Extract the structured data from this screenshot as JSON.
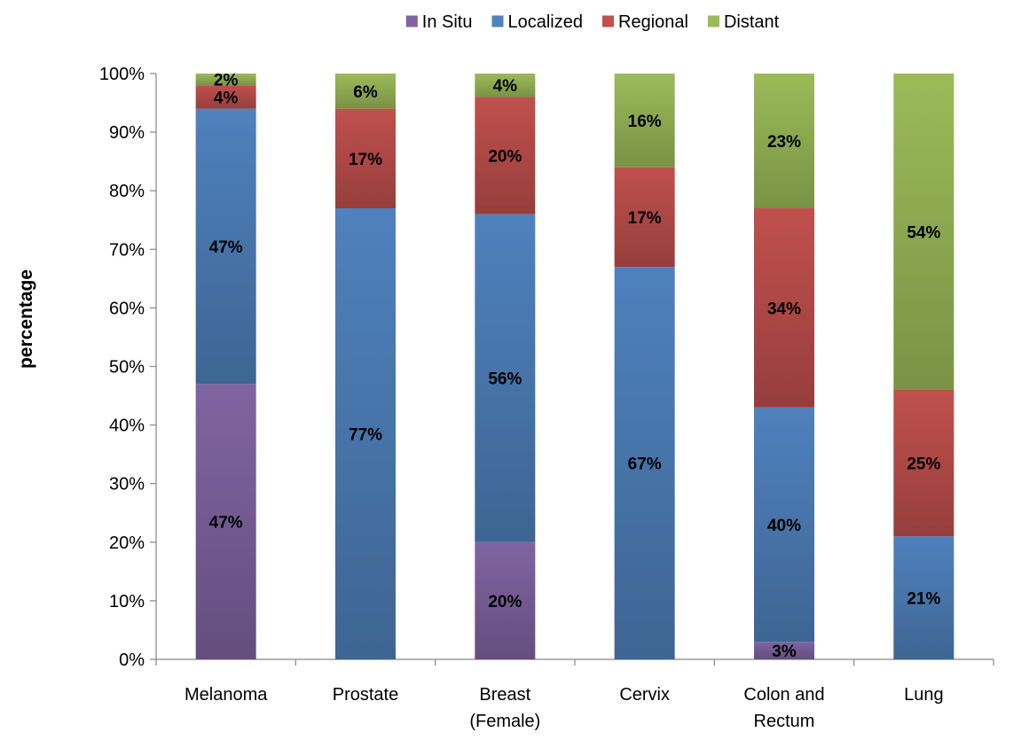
{
  "chart_data": {
    "type": "bar",
    "stacked": true,
    "normalized": true,
    "ylabel": "percentage",
    "xlabel": "",
    "title": "",
    "ylim": [
      0,
      100
    ],
    "yticks": [
      "0%",
      "10%",
      "20%",
      "30%",
      "40%",
      "50%",
      "60%",
      "70%",
      "80%",
      "90%",
      "100%"
    ],
    "grid": false,
    "legend_position": "top",
    "categories": [
      [
        "Melanoma"
      ],
      [
        "Prostate"
      ],
      [
        "Breast",
        "(Female)"
      ],
      [
        "Cervix"
      ],
      [
        "Colon and",
        "Rectum"
      ],
      [
        "Lung"
      ]
    ],
    "series": [
      {
        "name": "In Situ",
        "color": "#8064a2",
        "values": [
          47,
          0,
          20,
          0,
          3,
          0
        ]
      },
      {
        "name": "Localized",
        "color": "#4f81bd",
        "values": [
          47,
          77,
          56,
          67,
          40,
          21
        ]
      },
      {
        "name": "Regional",
        "color": "#c0504d",
        "values": [
          4,
          17,
          20,
          17,
          34,
          25
        ]
      },
      {
        "name": "Distant",
        "color": "#9bbb59",
        "values": [
          2,
          6,
          4,
          16,
          23,
          54
        ]
      }
    ],
    "data_labels": [
      [
        "47%",
        "",
        "20%",
        "",
        "3%",
        ""
      ],
      [
        "47%",
        "77%",
        "56%",
        "67%",
        "40%",
        "21%"
      ],
      [
        "4%",
        "17%",
        "20%",
        "17%",
        "34%",
        "25%"
      ],
      [
        "2%",
        "6%",
        "4%",
        "16%",
        "23%",
        "54%"
      ]
    ]
  }
}
